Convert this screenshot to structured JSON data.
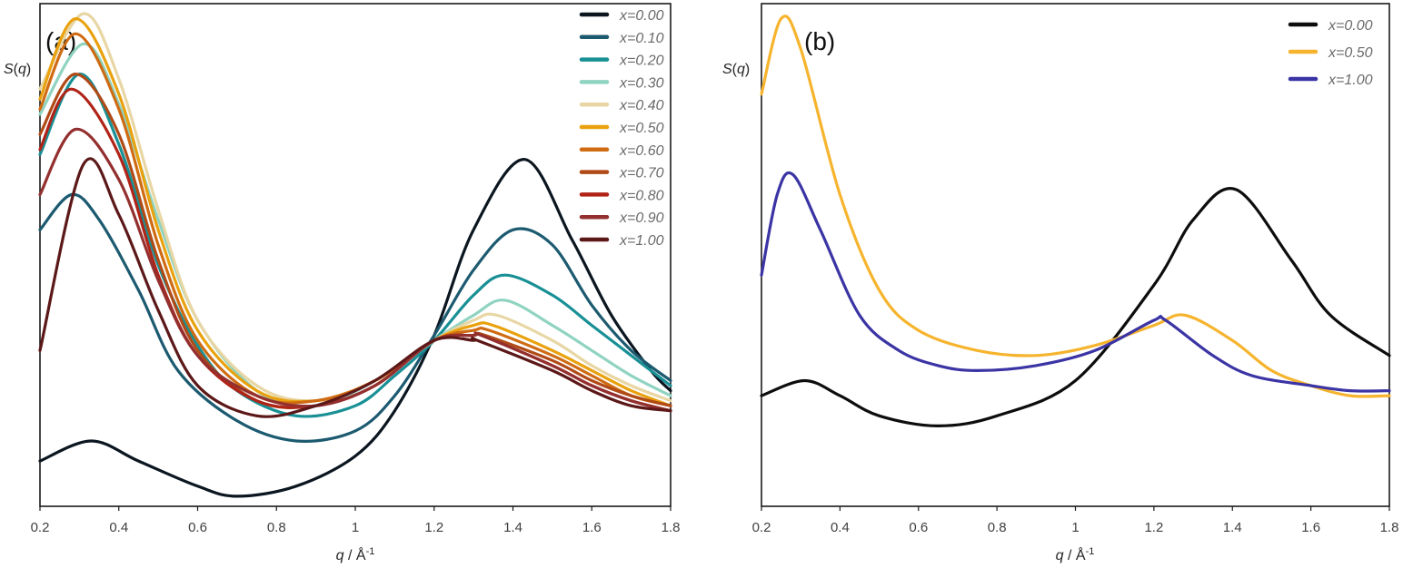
{
  "chart_data": [
    {
      "type": "line",
      "panel_label": "(a)",
      "ylabel": "S(q)",
      "xlabel": "q / Å-1",
      "xlabel_parts": {
        "q": "q",
        "unit": " / Å",
        "exp": "-1"
      },
      "ylabel_parts": {
        "s": "S",
        "open": "(",
        "q": "q",
        "close": ")"
      },
      "xlim": [
        0.2,
        1.8
      ],
      "x_ticks": [
        "0.2",
        "0.4",
        "0.6",
        "0.8",
        "1",
        "1.2",
        "1.4",
        "1.6",
        "1.8"
      ],
      "x_tick_values": [
        0.2,
        0.4,
        0.6,
        0.8,
        1.0,
        1.2,
        1.4,
        1.6,
        1.8
      ],
      "ylim": [
        0.0,
        1.0
      ],
      "y_ticks_shown": false,
      "grid": false,
      "legend_position": "top-right",
      "series": [
        {
          "name": "x=0.00",
          "color": "#0b1620",
          "x": [
            0.2,
            0.33,
            0.45,
            0.6,
            0.7,
            0.85,
            1.0,
            1.1,
            1.2,
            1.3,
            1.43,
            1.55,
            1.65,
            1.75,
            1.8
          ],
          "y": [
            0.09,
            0.13,
            0.09,
            0.04,
            0.02,
            0.04,
            0.1,
            0.19,
            0.34,
            0.55,
            0.69,
            0.53,
            0.38,
            0.27,
            0.23
          ]
        },
        {
          "name": "x=0.10",
          "color": "#1c5a70",
          "x": [
            0.2,
            0.28,
            0.35,
            0.45,
            0.55,
            0.7,
            0.85,
            1.0,
            1.1,
            1.2,
            1.3,
            1.4,
            1.5,
            1.6,
            1.7,
            1.8
          ],
          "y": [
            0.55,
            0.62,
            0.57,
            0.43,
            0.27,
            0.17,
            0.13,
            0.15,
            0.22,
            0.34,
            0.47,
            0.55,
            0.52,
            0.4,
            0.31,
            0.25
          ]
        },
        {
          "name": "x=0.20",
          "color": "#189095",
          "x": [
            0.2,
            0.3,
            0.4,
            0.5,
            0.6,
            0.7,
            0.85,
            1.0,
            1.1,
            1.2,
            1.3,
            1.38,
            1.5,
            1.6,
            1.7,
            1.8
          ],
          "y": [
            0.7,
            0.86,
            0.72,
            0.48,
            0.32,
            0.23,
            0.18,
            0.2,
            0.26,
            0.33,
            0.42,
            0.46,
            0.42,
            0.36,
            0.3,
            0.24
          ]
        },
        {
          "name": "x=0.30",
          "color": "#8fd3c0",
          "x": [
            0.2,
            0.31,
            0.4,
            0.5,
            0.6,
            0.75,
            0.9,
            1.05,
            1.2,
            1.3,
            1.38,
            1.5,
            1.6,
            1.7,
            1.8
          ],
          "y": [
            0.78,
            0.92,
            0.8,
            0.57,
            0.37,
            0.23,
            0.2,
            0.25,
            0.33,
            0.38,
            0.41,
            0.36,
            0.31,
            0.26,
            0.22
          ]
        },
        {
          "name": "x=0.40",
          "color": "#e8d6a4",
          "x": [
            0.2,
            0.31,
            0.4,
            0.5,
            0.6,
            0.75,
            0.9,
            1.05,
            1.2,
            1.3,
            1.36,
            1.5,
            1.6,
            1.7,
            1.8
          ],
          "y": [
            0.83,
            0.98,
            0.85,
            0.59,
            0.37,
            0.24,
            0.21,
            0.25,
            0.33,
            0.37,
            0.38,
            0.33,
            0.28,
            0.24,
            0.21
          ]
        },
        {
          "name": "x=0.50",
          "color": "#e9a10d",
          "x": [
            0.2,
            0.29,
            0.4,
            0.5,
            0.6,
            0.75,
            0.9,
            1.05,
            1.2,
            1.3,
            1.35,
            1.5,
            1.6,
            1.7,
            1.8
          ],
          "y": [
            0.81,
            0.97,
            0.82,
            0.55,
            0.35,
            0.23,
            0.21,
            0.25,
            0.33,
            0.36,
            0.36,
            0.31,
            0.27,
            0.23,
            0.2
          ]
        },
        {
          "name": "x=0.60",
          "color": "#cf6b12",
          "x": [
            0.2,
            0.29,
            0.4,
            0.5,
            0.6,
            0.75,
            0.9,
            1.05,
            1.2,
            1.3,
            1.34,
            1.5,
            1.6,
            1.7,
            1.8
          ],
          "y": [
            0.79,
            0.94,
            0.79,
            0.52,
            0.33,
            0.22,
            0.21,
            0.25,
            0.33,
            0.35,
            0.35,
            0.3,
            0.26,
            0.22,
            0.2
          ]
        },
        {
          "name": "x=0.70",
          "color": "#b04a16",
          "x": [
            0.2,
            0.29,
            0.4,
            0.5,
            0.6,
            0.75,
            0.9,
            1.05,
            1.2,
            1.3,
            1.33,
            1.5,
            1.6,
            1.7,
            1.8
          ],
          "y": [
            0.74,
            0.86,
            0.74,
            0.49,
            0.31,
            0.21,
            0.2,
            0.24,
            0.33,
            0.34,
            0.34,
            0.29,
            0.25,
            0.22,
            0.2
          ]
        },
        {
          "name": "x=0.80",
          "color": "#b02418",
          "x": [
            0.2,
            0.28,
            0.4,
            0.5,
            0.6,
            0.75,
            0.9,
            1.05,
            1.2,
            1.3,
            1.32,
            1.5,
            1.6,
            1.7,
            1.8
          ],
          "y": [
            0.71,
            0.83,
            0.7,
            0.46,
            0.3,
            0.21,
            0.2,
            0.24,
            0.33,
            0.34,
            0.34,
            0.28,
            0.24,
            0.21,
            0.19
          ]
        },
        {
          "name": "x=0.90",
          "color": "#93302f",
          "x": [
            0.2,
            0.29,
            0.4,
            0.5,
            0.6,
            0.75,
            0.9,
            1.05,
            1.2,
            1.3,
            1.32,
            1.5,
            1.6,
            1.7,
            1.8
          ],
          "y": [
            0.62,
            0.75,
            0.65,
            0.45,
            0.3,
            0.22,
            0.2,
            0.24,
            0.33,
            0.34,
            0.34,
            0.28,
            0.24,
            0.21,
            0.19
          ]
        },
        {
          "name": "x=1.00",
          "color": "#5c1818",
          "x": [
            0.2,
            0.31,
            0.4,
            0.5,
            0.6,
            0.75,
            0.9,
            1.05,
            1.2,
            1.3,
            1.31,
            1.5,
            1.6,
            1.7,
            1.8
          ],
          "y": [
            0.31,
            0.68,
            0.58,
            0.39,
            0.24,
            0.18,
            0.2,
            0.25,
            0.33,
            0.33,
            0.33,
            0.27,
            0.23,
            0.2,
            0.19
          ]
        }
      ]
    },
    {
      "type": "line",
      "panel_label": "(b)",
      "ylabel": "S(q)",
      "xlabel": "q / Å-1",
      "xlabel_parts": {
        "q": "q",
        "unit": " / Å",
        "exp": "-1"
      },
      "ylabel_parts": {
        "s": "S",
        "open": "(",
        "q": "q",
        "close": ")"
      },
      "xlim": [
        0.2,
        1.8
      ],
      "x_ticks": [
        "0.2",
        "0.4",
        "0.6",
        "0.8",
        "1",
        "1.2",
        "1.4",
        "1.6",
        "1.8"
      ],
      "x_tick_values": [
        0.2,
        0.4,
        0.6,
        0.8,
        1.0,
        1.2,
        1.4,
        1.6,
        1.8
      ],
      "ylim": [
        0.0,
        1.0
      ],
      "y_ticks_shown": false,
      "grid": false,
      "legend_position": "top-right",
      "series": [
        {
          "name": "x=0.00",
          "color": "#0d0d0d",
          "x": [
            0.2,
            0.31,
            0.4,
            0.5,
            0.65,
            0.8,
            1.0,
            1.2,
            1.3,
            1.41,
            1.55,
            1.65,
            1.8
          ],
          "y": [
            0.22,
            0.25,
            0.22,
            0.18,
            0.16,
            0.18,
            0.25,
            0.44,
            0.57,
            0.63,
            0.49,
            0.38,
            0.3
          ]
        },
        {
          "name": "x=0.50",
          "color": "#f6b42e",
          "x": [
            0.2,
            0.25,
            0.3,
            0.4,
            0.5,
            0.6,
            0.75,
            0.9,
            1.05,
            1.2,
            1.28,
            1.4,
            1.5,
            1.6,
            1.7,
            1.8
          ],
          "y": [
            0.82,
            0.97,
            0.91,
            0.62,
            0.43,
            0.35,
            0.31,
            0.3,
            0.32,
            0.36,
            0.38,
            0.33,
            0.27,
            0.24,
            0.22,
            0.22
          ]
        },
        {
          "name": "x=1.00",
          "color": "#3b34a4",
          "x": [
            0.2,
            0.24,
            0.28,
            0.35,
            0.45,
            0.55,
            0.65,
            0.75,
            0.9,
            1.05,
            1.2,
            1.23,
            1.35,
            1.45,
            1.6,
            1.7,
            1.8
          ],
          "y": [
            0.46,
            0.62,
            0.66,
            0.55,
            0.38,
            0.31,
            0.28,
            0.27,
            0.28,
            0.31,
            0.37,
            0.37,
            0.3,
            0.26,
            0.24,
            0.23,
            0.23
          ]
        }
      ]
    }
  ]
}
